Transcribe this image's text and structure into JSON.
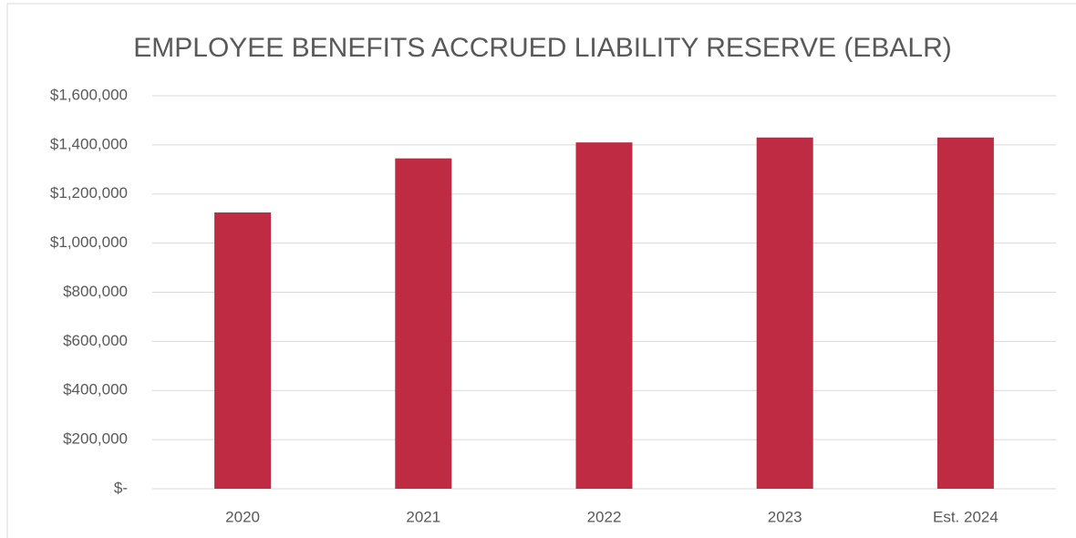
{
  "chart_data": {
    "type": "bar",
    "title": "EMPLOYEE BENEFITS ACCRUED LIABILITY RESERVE (EBALR)",
    "categories": [
      "2020",
      "2021",
      "2022",
      "2023",
      "Est. 2024"
    ],
    "values": [
      1125000,
      1345000,
      1410000,
      1430000,
      1430000
    ],
    "color": "#be2b43",
    "ylim": [
      0,
      1600000
    ],
    "yticks": [
      {
        "value": 0,
        "label": "$-"
      },
      {
        "value": 200000,
        "label": "$200,000"
      },
      {
        "value": 400000,
        "label": "$400,000"
      },
      {
        "value": 600000,
        "label": "$600,000"
      },
      {
        "value": 800000,
        "label": "$800,000"
      },
      {
        "value": 1000000,
        "label": "$1,000,000"
      },
      {
        "value": 1200000,
        "label": "$1,200,000"
      },
      {
        "value": 1400000,
        "label": "$1,400,000"
      },
      {
        "value": 1600000,
        "label": "$1,600,000"
      }
    ],
    "grid": true
  }
}
